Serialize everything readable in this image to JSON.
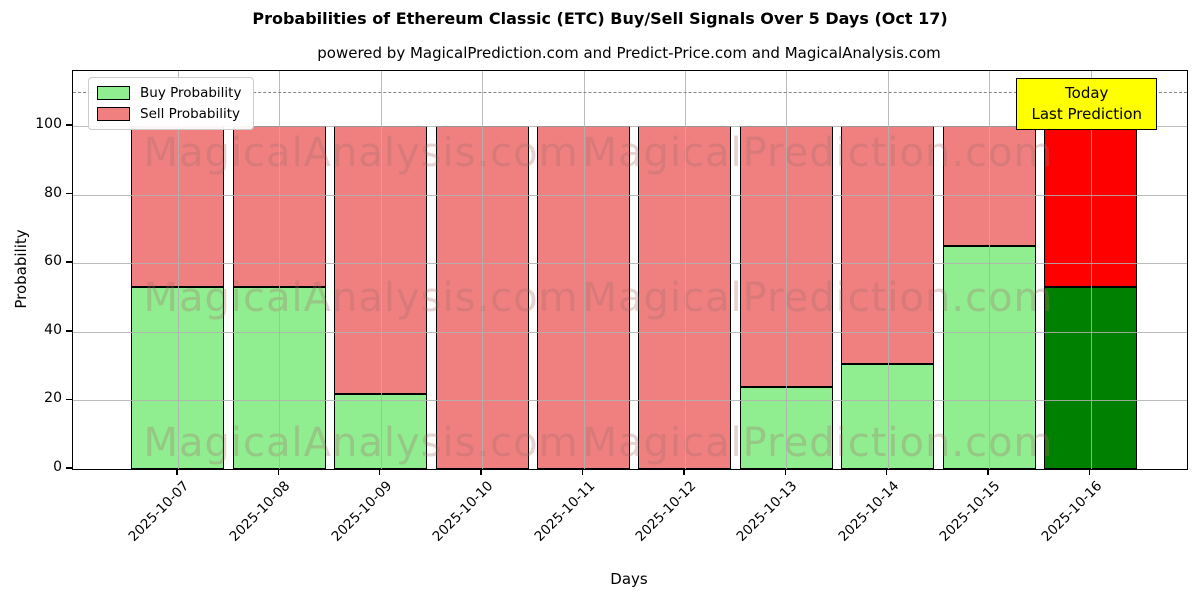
{
  "chart_data": {
    "type": "bar",
    "stacked": true,
    "title": "Probabilities of Ethereum Classic (ETC) Buy/Sell Signals Over 5 Days (Oct 17)",
    "subtitle": "powered by MagicalPrediction.com and Predict-Price.com and MagicalAnalysis.com",
    "categories": [
      "2025-10-07",
      "2025-10-08",
      "2025-10-09",
      "2025-10-10",
      "2025-10-11",
      "2025-10-12",
      "2025-10-13",
      "2025-10-14",
      "2025-10-15",
      "2025-10-16"
    ],
    "series": [
      {
        "name": "Buy Probability",
        "color": "#90EE90",
        "today_color": "#008000",
        "values": [
          53,
          53,
          22,
          0,
          0,
          0,
          24,
          30.5,
          65,
          53
        ]
      },
      {
        "name": "Sell Probability",
        "color": "#F08080",
        "today_color": "#FF0000",
        "values": [
          47,
          47,
          78,
          100,
          100,
          100,
          76,
          69.5,
          35,
          47
        ]
      }
    ],
    "xlabel": "Days",
    "ylabel": "Probability",
    "yticks": [
      0,
      20,
      40,
      60,
      80,
      100
    ],
    "ylim": [
      0,
      116
    ],
    "threshold_line": {
      "y": 110,
      "style": "dashed",
      "color": "#868686"
    },
    "grid": true,
    "legend_position": "upper left",
    "bar_edge_color": "#000000"
  },
  "annotation": {
    "line1": "Today",
    "line2": "Last Prediction",
    "bg_color": "#FFFF00",
    "border_color": "#000000"
  },
  "watermarks": {
    "left_text": "MagicalAnalysis.com",
    "right_text": "MagicalPrediction.com",
    "rows": 3
  }
}
